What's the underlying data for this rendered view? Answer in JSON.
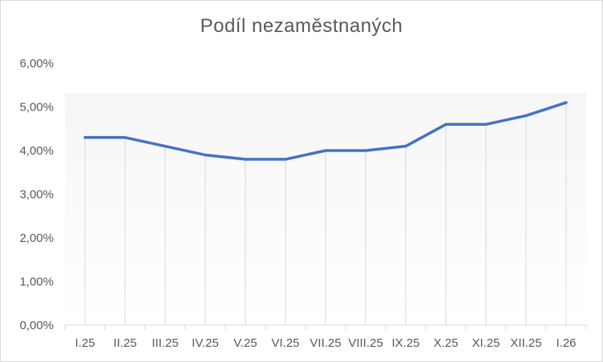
{
  "chart_data": {
    "type": "line",
    "title": "Podíl  nezaměstnaných",
    "categories": [
      "I.25",
      "II.25",
      "III.25",
      "IV.25",
      "V.25",
      "VI.25",
      "VII.25",
      "VIII.25",
      "IX.25",
      "X.25",
      "XI.25",
      "XII.25",
      "I.26"
    ],
    "series": [
      {
        "values": [
          4.3,
          4.3,
          4.1,
          3.9,
          3.8,
          3.8,
          4.0,
          4.0,
          4.1,
          4.6,
          4.6,
          4.8,
          5.1
        ]
      }
    ],
    "ylim": [
      0,
      6
    ],
    "yticks": [
      0,
      1,
      2,
      3,
      4,
      5,
      6
    ],
    "ytick_labels": [
      "0,00%",
      "1,00%",
      "2,00%",
      "3,00%",
      "4,00%",
      "5,00%",
      "6,00%"
    ],
    "grid": "vertical drop lines",
    "line_color": "#4472c4",
    "xlabel": "",
    "ylabel": ""
  }
}
